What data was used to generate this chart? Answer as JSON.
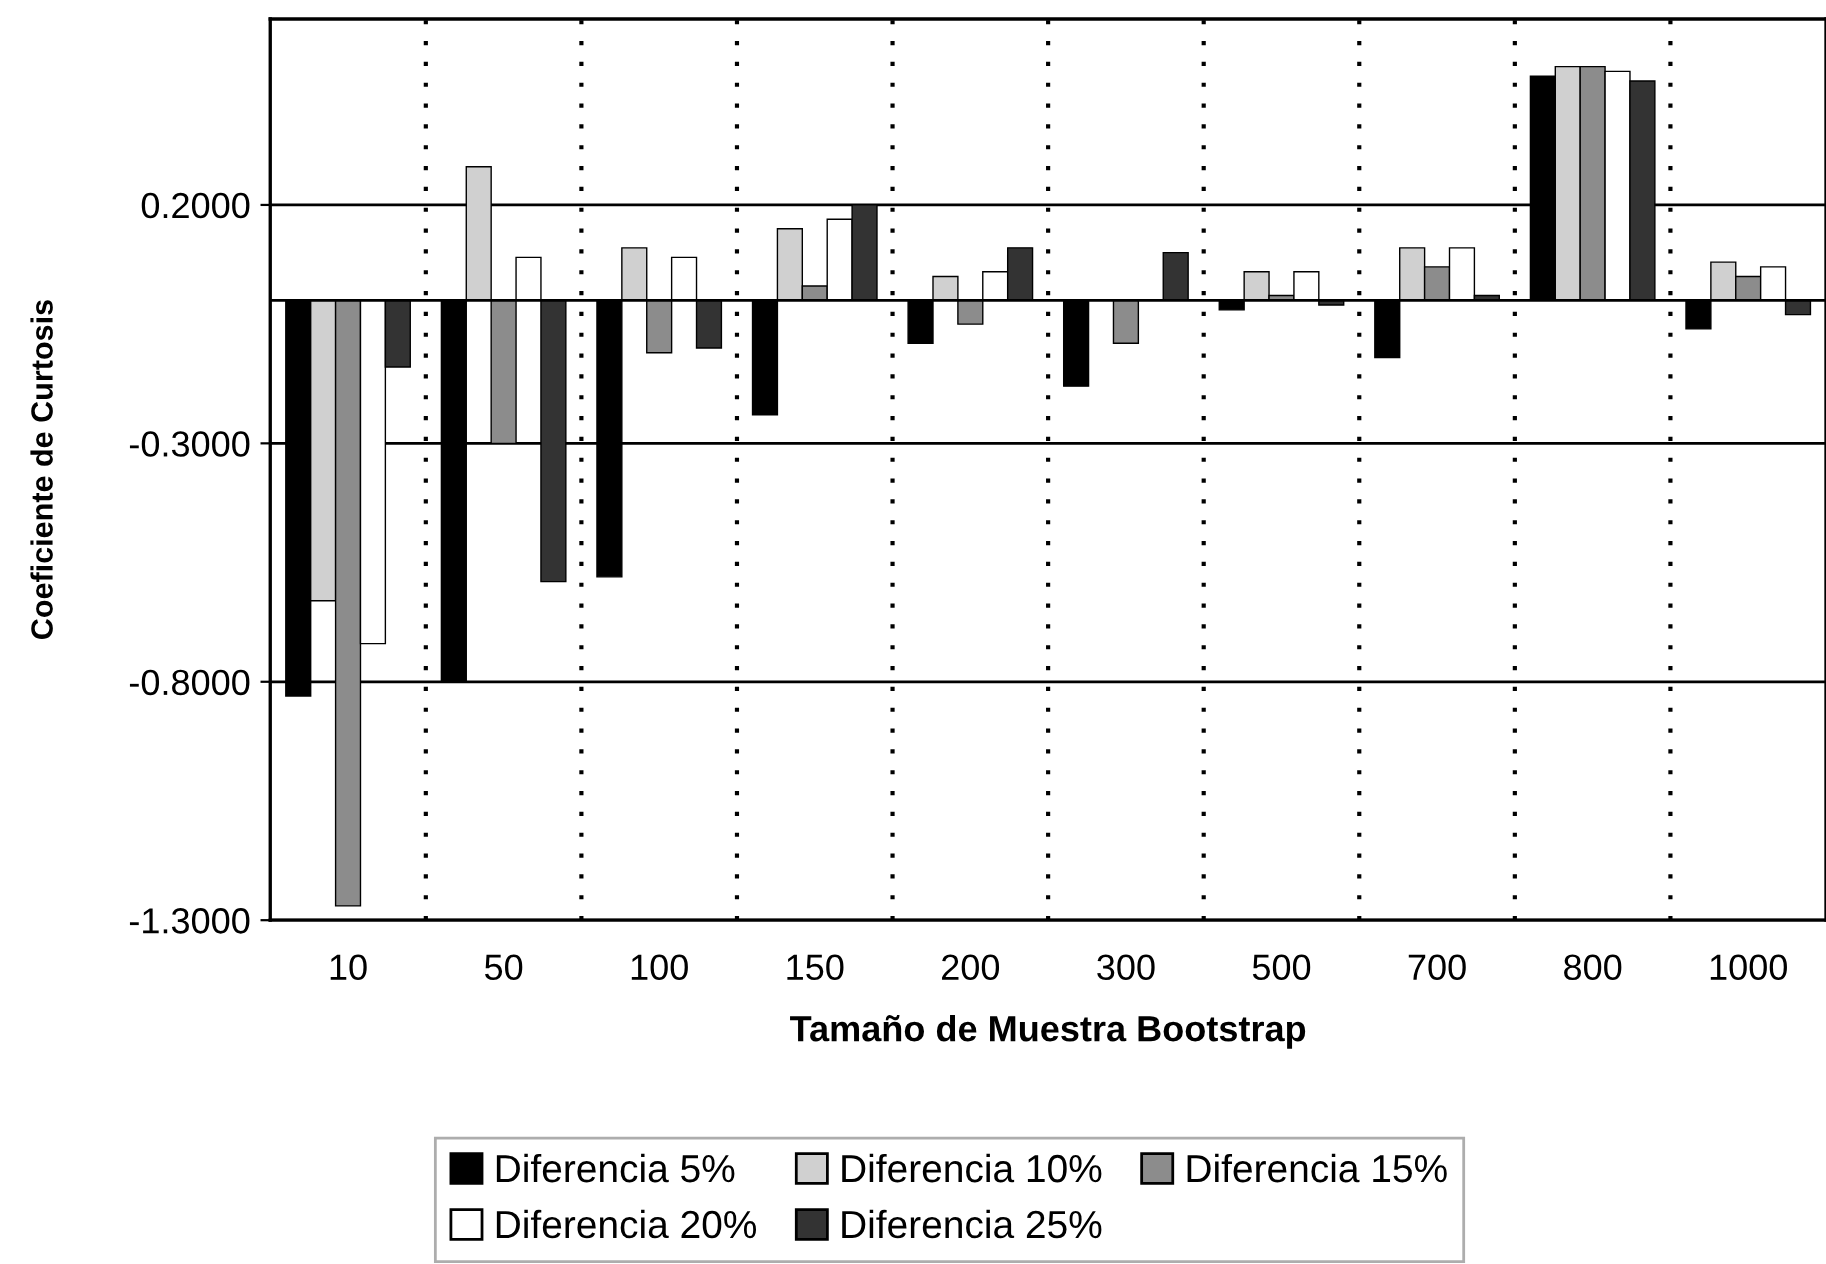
{
  "chart_data": {
    "type": "bar",
    "xlabel": "Tamaño de Muestra Bootstrap",
    "ylabel": "Coeficiente de Curtosis",
    "categories": [
      "10",
      "50",
      "100",
      "150",
      "200",
      "300",
      "500",
      "700",
      "800",
      "1000"
    ],
    "series": [
      {
        "name": "Diferencia 5%",
        "color": "#000000",
        "values": [
          -0.83,
          -0.8,
          -0.58,
          -0.24,
          -0.09,
          -0.18,
          -0.02,
          -0.12,
          0.47,
          -0.06
        ]
      },
      {
        "name": "Diferencia 10%",
        "color": "#d0d0d0",
        "values": [
          -0.63,
          0.28,
          0.11,
          0.15,
          0.05,
          null,
          0.06,
          0.11,
          0.49,
          0.08
        ]
      },
      {
        "name": "Diferencia 15%",
        "color": "#8c8c8c",
        "values": [
          -1.27,
          -0.3,
          -0.11,
          0.03,
          -0.05,
          -0.09,
          0.01,
          0.07,
          0.49,
          0.05
        ]
      },
      {
        "name": "Diferencia 20%",
        "color": "#ffffff",
        "values": [
          -0.72,
          0.09,
          0.09,
          0.17,
          0.06,
          null,
          0.06,
          0.11,
          0.48,
          0.07
        ]
      },
      {
        "name": "Diferencia 25%",
        "color": "#333333",
        "values": [
          -0.14,
          -0.59,
          -0.1,
          0.2,
          0.11,
          0.1,
          -0.01,
          0.01,
          0.46,
          -0.03
        ]
      }
    ],
    "ylim": [
      -1.3,
      0.59
    ],
    "yticks": [
      {
        "value": 0.2,
        "label": "0.2000"
      },
      {
        "value": -0.3,
        "label": "-0.3000"
      },
      {
        "value": -0.8,
        "label": "-0.8000"
      },
      {
        "value": -1.3,
        "label": "-1.3000"
      }
    ],
    "grid": true,
    "legend": "bottom"
  }
}
